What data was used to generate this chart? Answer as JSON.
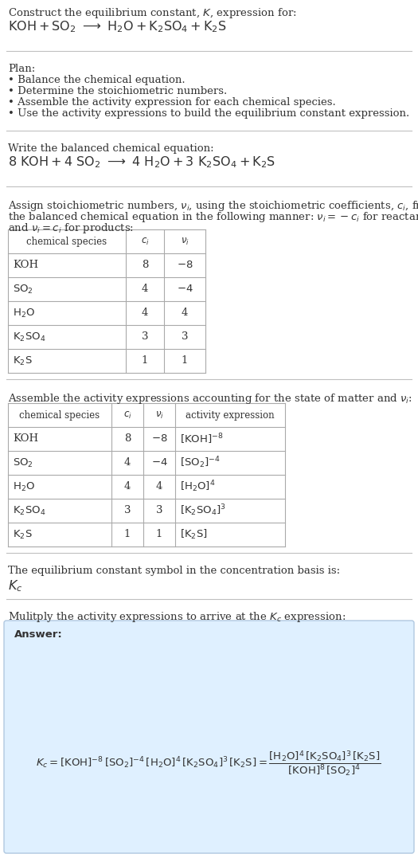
{
  "bg_color": "#ffffff",
  "text_color": "#333333",
  "table_border_color": "#aaaaaa",
  "answer_box_color": "#dff0ff",
  "font_size": 9.5,
  "title_line1": "Construct the equilibrium constant, $K$, expression for:",
  "species1": [
    "KOH",
    "$\\mathrm{SO_2}$",
    "$\\mathrm{H_2O}$",
    "$\\mathrm{K_2SO_4}$",
    "$\\mathrm{K_2S}$"
  ],
  "ci1": [
    "8",
    "4",
    "4",
    "3",
    "1"
  ],
  "vi1_tex": [
    "$-8$",
    "$-4$",
    "4",
    "3",
    "1"
  ],
  "act_expr": [
    "$[\\mathrm{KOH}]^{-8}$",
    "$[\\mathrm{SO_2}]^{-4}$",
    "$[\\mathrm{H_2O}]^{4}$",
    "$[\\mathrm{K_2SO_4}]^{3}$",
    "$[\\mathrm{K_2S}]$"
  ]
}
